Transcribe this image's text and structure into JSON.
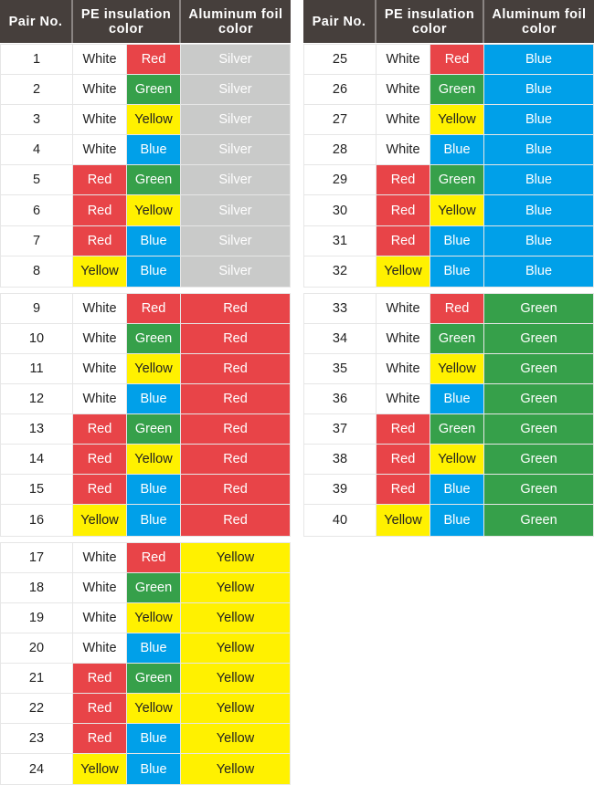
{
  "headers": {
    "pair": "Pair No.",
    "pe": "PE insulation color",
    "foil": "Aluminum foil color"
  },
  "colors": {
    "header": "#463f3c",
    "White": "#ffffff",
    "Red": "#e84448",
    "Green": "#36a04a",
    "Yellow": "#fff100",
    "Blue": "#00a0e9",
    "Silver": "#c9cac9"
  },
  "tables": [
    {
      "groups": [
        {
          "foil": "Silver",
          "rows": [
            [
              1,
              "White",
              "Red"
            ],
            [
              2,
              "White",
              "Green"
            ],
            [
              3,
              "White",
              "Yellow"
            ],
            [
              4,
              "White",
              "Blue"
            ],
            [
              5,
              "Red",
              "Green"
            ],
            [
              6,
              "Red",
              "Yellow"
            ],
            [
              7,
              "Red",
              "Blue"
            ],
            [
              8,
              "Yellow",
              "Blue"
            ]
          ]
        },
        {
          "foil": "Red",
          "rows": [
            [
              9,
              "White",
              "Red"
            ],
            [
              10,
              "White",
              "Green"
            ],
            [
              11,
              "White",
              "Yellow"
            ],
            [
              12,
              "White",
              "Blue"
            ],
            [
              13,
              "Red",
              "Green"
            ],
            [
              14,
              "Red",
              "Yellow"
            ],
            [
              15,
              "Red",
              "Blue"
            ],
            [
              16,
              "Yellow",
              "Blue"
            ]
          ]
        },
        {
          "foil": "Yellow",
          "rows": [
            [
              17,
              "White",
              "Red"
            ],
            [
              18,
              "White",
              "Green"
            ],
            [
              19,
              "White",
              "Yellow"
            ],
            [
              20,
              "White",
              "Blue"
            ],
            [
              21,
              "Red",
              "Green"
            ],
            [
              22,
              "Red",
              "Yellow"
            ],
            [
              23,
              "Red",
              "Blue"
            ],
            [
              24,
              "Yellow",
              "Blue"
            ]
          ]
        }
      ]
    },
    {
      "groups": [
        {
          "foil": "Blue",
          "rows": [
            [
              25,
              "White",
              "Red"
            ],
            [
              26,
              "White",
              "Green"
            ],
            [
              27,
              "White",
              "Yellow"
            ],
            [
              28,
              "White",
              "Blue"
            ],
            [
              29,
              "Red",
              "Green"
            ],
            [
              30,
              "Red",
              "Yellow"
            ],
            [
              31,
              "Red",
              "Blue"
            ],
            [
              32,
              "Yellow",
              "Blue"
            ]
          ]
        },
        {
          "foil": "Green",
          "rows": [
            [
              33,
              "White",
              "Red"
            ],
            [
              34,
              "White",
              "Green"
            ],
            [
              35,
              "White",
              "Yellow"
            ],
            [
              36,
              "White",
              "Blue"
            ],
            [
              37,
              "Red",
              "Green"
            ],
            [
              38,
              "Red",
              "Yellow"
            ],
            [
              39,
              "Red",
              "Blue"
            ],
            [
              40,
              "Yellow",
              "Blue"
            ]
          ]
        }
      ]
    }
  ]
}
